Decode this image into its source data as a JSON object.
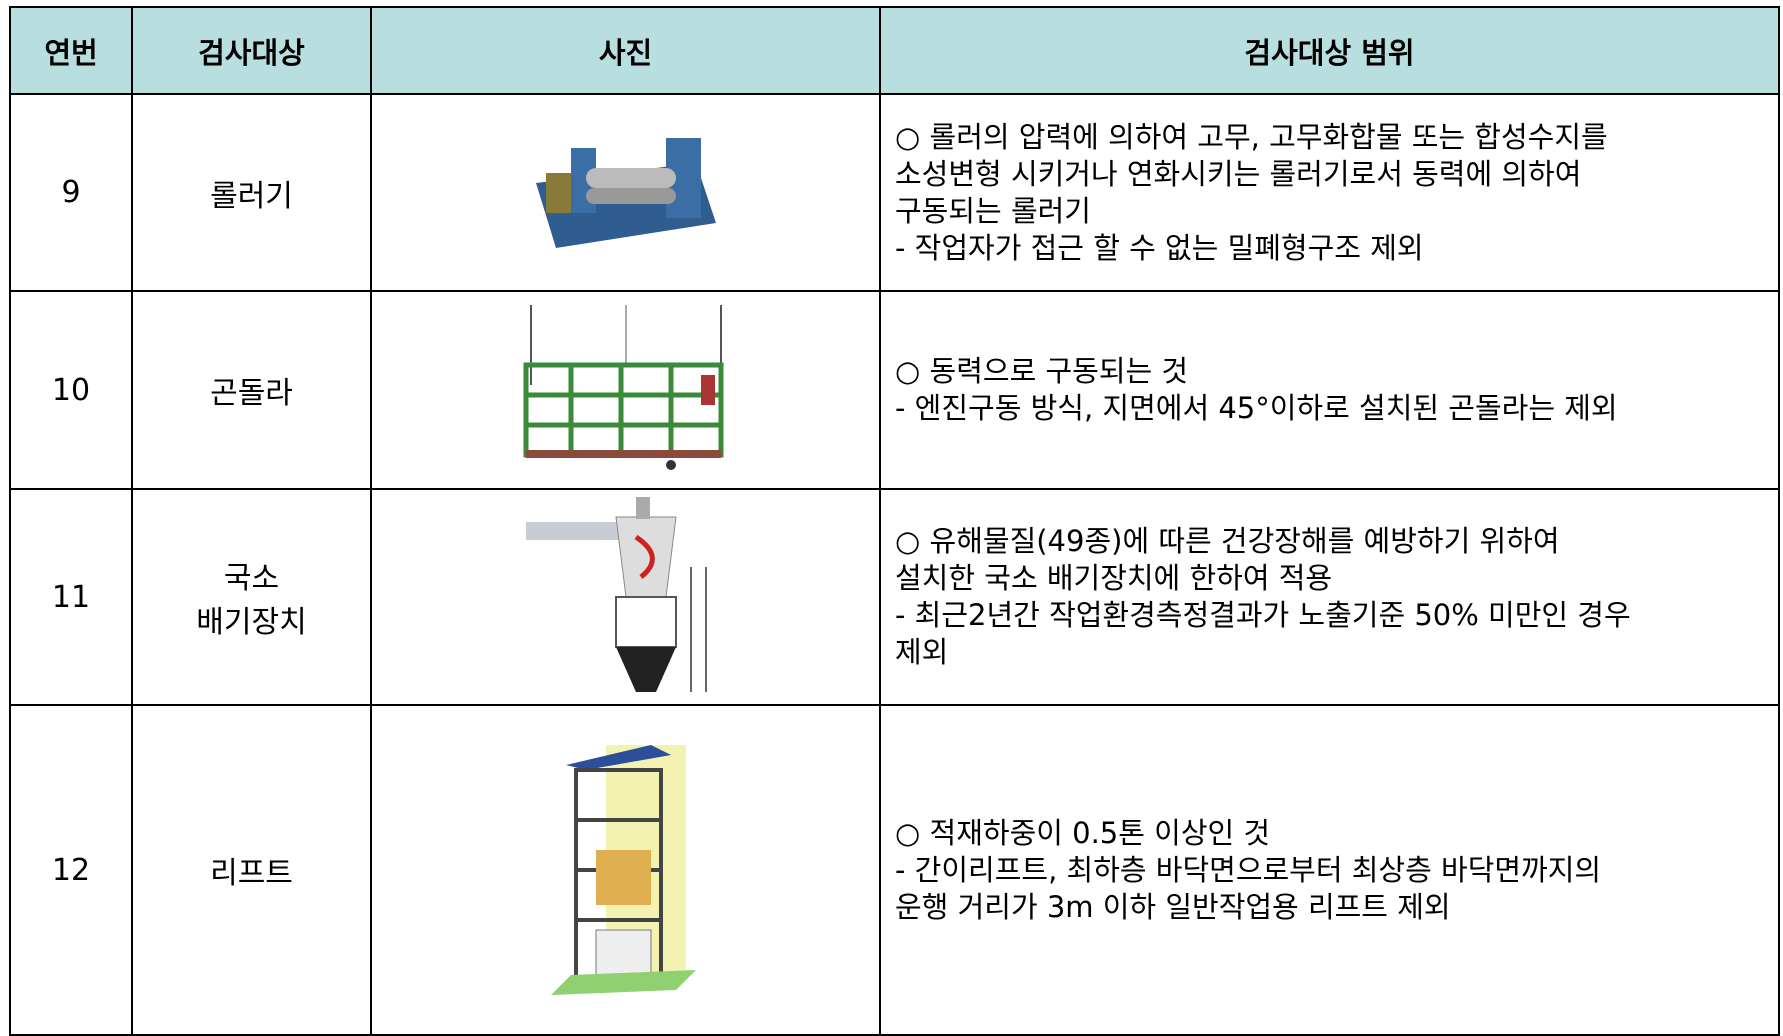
{
  "table": {
    "header": [
      "연번",
      "검사대상",
      "사진",
      "검사대상 범위"
    ],
    "rows": [
      {
        "no": "9",
        "target": [
          "롤러기"
        ],
        "desc": [
          "○ 롤러의 압력에 의하여 고무, 고무화합물 또는 합성수지를",
          "소성변형 시키거나 연화시키는 롤러기로서 동력에 의하여",
          "구동되는 롤러기",
          "- 작업자가 접근 할 수 없는 밀폐형구조 제외"
        ]
      },
      {
        "no": "10",
        "target": [
          "곤돌라"
        ],
        "desc": [
          "○ 동력으로 구동되는 것",
          "- 엔진구동 방식, 지면에서 45°이하로 설치된 곤돌라는 제외"
        ]
      },
      {
        "no": "11",
        "target": [
          "국소",
          "배기장치"
        ],
        "desc": [
          "○ 유해물질(49종)에 따른 건강장해를 예방하기 위하여",
          "설치한 국소 배기장치에 한하여 적용",
          "- 최근2년간 작업환경측정결과가 노출기준 50% 미만인 경우",
          "제외"
        ]
      },
      {
        "no": "12",
        "target": [
          "리프트"
        ],
        "desc": [
          "○ 적재하중이 0.5톤 이상인 것",
          "- 간이리프트, 최하층 바닥면으로부터 최상층 바닥면까지의",
          "운행 거리가 3m 이하 일반작업용 리프트 제외"
        ]
      }
    ]
  }
}
